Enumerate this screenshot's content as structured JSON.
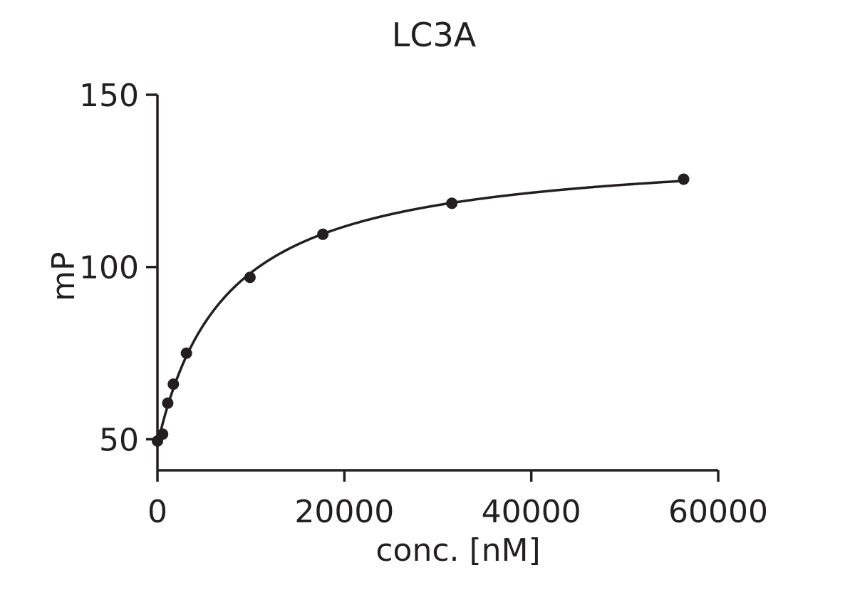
{
  "chart_data": {
    "type": "scatter",
    "title": "LC3A",
    "xlabel": "conc. [nM]",
    "ylabel": "mP",
    "xlim": [
      0,
      60000
    ],
    "ylim": [
      41,
      150
    ],
    "x_ticks": [
      "0",
      "20000",
      "40000",
      "60000"
    ],
    "x_tick_values": [
      0,
      20000,
      40000,
      60000
    ],
    "y_ticks": [
      "50",
      "100",
      "150"
    ],
    "y_tick_values": [
      50,
      100,
      150
    ],
    "grid": false,
    "legend": "none",
    "series": [
      {
        "x": [
          0,
          550,
          1100,
          1700,
          3100,
          9900,
          17700,
          31500,
          56300
        ],
        "y": [
          49.5,
          51.5,
          60.5,
          66,
          75,
          97,
          109.5,
          118.5,
          125.5
        ],
        "fit_curve": true
      }
    ],
    "colors": {
      "marker": "#231f20",
      "line": "#231f20",
      "axis": "#231f20"
    }
  }
}
